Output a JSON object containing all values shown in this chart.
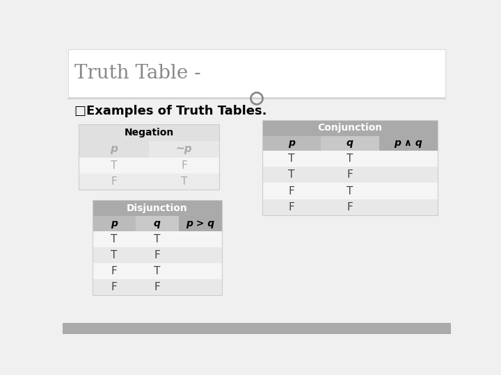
{
  "title": "Truth Table -",
  "subtitle": "□Examples of Truth Tables.",
  "bg_color": "#f0f0f0",
  "title_bg": "#ffffff",
  "negation_header": "Negation",
  "negation_header_bg": "#e0e0e0",
  "negation_header_text": "#000000",
  "negation_col_bg": "#e8e8e8",
  "negation_col_text": "#aaaaaa",
  "negation_cols": [
    "p",
    "~p"
  ],
  "negation_rows": [
    [
      "T",
      "F"
    ],
    [
      "F",
      "T"
    ]
  ],
  "negation_row_odd": "#f5f5f5",
  "negation_row_even": "#ebebeb",
  "negation_row_text": "#aaaaaa",
  "disjunction_header": "Disjunction",
  "disjunction_header_bg": "#aaaaaa",
  "disjunction_header_text": "#ffffff",
  "disjunction_col_bg": "#bbbbbb",
  "disjunction_col_text": "#000000",
  "disjunction_cols": [
    "p",
    "q",
    "p > q"
  ],
  "disjunction_rows": [
    [
      "T",
      "T",
      ""
    ],
    [
      "T",
      "F",
      ""
    ],
    [
      "F",
      "T",
      ""
    ],
    [
      "F",
      "F",
      ""
    ]
  ],
  "disjunction_row_odd": "#f5f5f5",
  "disjunction_row_even": "#e8e8e8",
  "disjunction_row_text": "#444444",
  "conjunction_header": "Conjunction",
  "conjunction_header_bg": "#aaaaaa",
  "conjunction_header_text": "#ffffff",
  "conjunction_col_bg": "#bbbbbb",
  "conjunction_col_text": "#000000",
  "conjunction_cols": [
    "p",
    "q",
    "p ∧ q"
  ],
  "conjunction_rows": [
    [
      "T",
      "T",
      ""
    ],
    [
      "T",
      "F",
      ""
    ],
    [
      "F",
      "T",
      ""
    ],
    [
      "F",
      "F",
      ""
    ]
  ],
  "conjunction_row_odd": "#f5f5f5",
  "conjunction_row_even": "#e8e8e8",
  "conjunction_row_text": "#444444",
  "footer_color": "#aaaaaa",
  "circle_color": "#888888",
  "line_color": "#cccccc",
  "title_color": "#888888",
  "subtitle_color": "#000000"
}
